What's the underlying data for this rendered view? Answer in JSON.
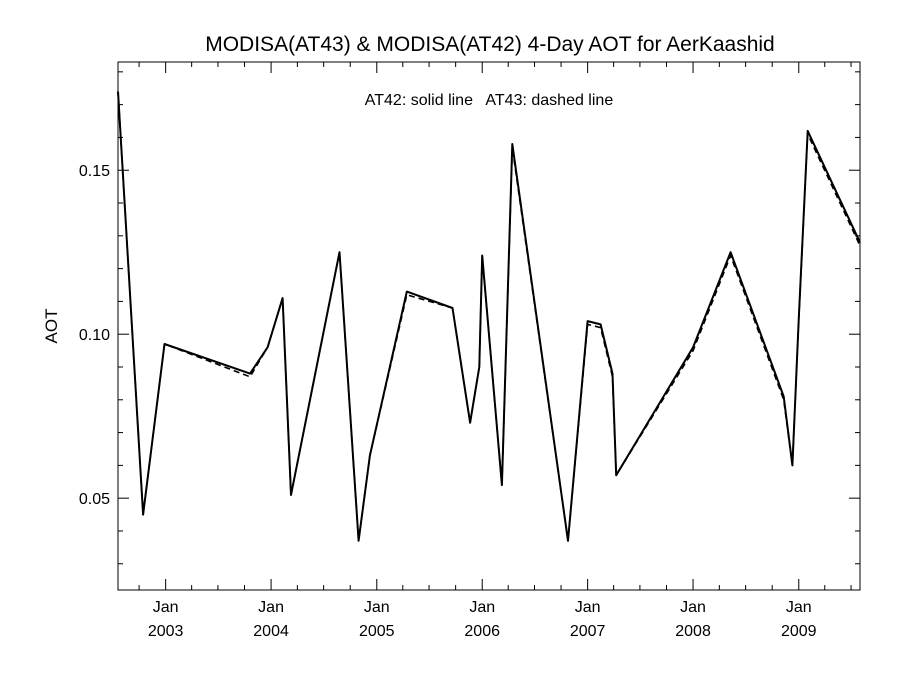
{
  "chart_data": {
    "type": "line",
    "title": "MODISA(AT43) & MODISA(AT42) 4-Day AOT for AerKaashid",
    "annotation": "AT42: solid line   AT43: dashed line",
    "xlabel": "",
    "ylabel": "AOT",
    "xlim": [
      "2002-07-20",
      "2009-08-01"
    ],
    "ylim": [
      0.022,
      0.183
    ],
    "yticks": [
      0.05,
      0.1,
      0.15
    ],
    "ytick_labels": [
      "0.05",
      "0.10",
      "0.15"
    ],
    "xticks": [
      {
        "date": "2003-01-01",
        "month": "Jan",
        "year": "2003"
      },
      {
        "date": "2004-01-01",
        "month": "Jan",
        "year": "2004"
      },
      {
        "date": "2005-01-01",
        "month": "Jan",
        "year": "2005"
      },
      {
        "date": "2006-01-01",
        "month": "Jan",
        "year": "2006"
      },
      {
        "date": "2007-01-01",
        "month": "Jan",
        "year": "2007"
      },
      {
        "date": "2008-01-01",
        "month": "Jan",
        "year": "2008"
      },
      {
        "date": "2009-01-01",
        "month": "Jan",
        "year": "2009"
      }
    ],
    "grid": false,
    "series": [
      {
        "label": "AT42",
        "style": "solid",
        "color": "#000000",
        "points": [
          [
            "2002-07-20",
            0.174
          ],
          [
            "2002-10-15",
            0.045
          ],
          [
            "2002-12-28",
            0.097
          ],
          [
            "2003-10-20",
            0.088
          ],
          [
            "2003-12-20",
            0.096
          ],
          [
            "2004-02-10",
            0.111
          ],
          [
            "2004-03-10",
            0.051
          ],
          [
            "2004-08-25",
            0.125
          ],
          [
            "2004-10-30",
            0.037
          ],
          [
            "2004-12-08",
            0.063
          ],
          [
            "2005-04-15",
            0.113
          ],
          [
            "2005-09-20",
            0.108
          ],
          [
            "2005-11-20",
            0.073
          ],
          [
            "2005-12-22",
            0.09
          ],
          [
            "2006-01-01",
            0.124
          ],
          [
            "2006-03-10",
            0.054
          ],
          [
            "2006-04-15",
            0.158
          ],
          [
            "2006-10-25",
            0.037
          ],
          [
            "2007-01-01",
            0.104
          ],
          [
            "2007-02-15",
            0.103
          ],
          [
            "2007-03-28",
            0.088
          ],
          [
            "2007-04-10",
            0.057
          ],
          [
            "2008-01-01",
            0.096
          ],
          [
            "2008-05-10",
            0.125
          ],
          [
            "2008-11-10",
            0.081
          ],
          [
            "2008-12-10",
            0.06
          ],
          [
            "2009-01-01",
            0.105
          ],
          [
            "2009-02-01",
            0.162
          ],
          [
            "2009-08-01",
            0.128
          ]
        ]
      },
      {
        "label": "AT43",
        "style": "dashed",
        "color": "#000000",
        "points": [
          [
            "2002-07-20",
            0.174
          ],
          [
            "2002-10-15",
            0.045
          ],
          [
            "2002-12-28",
            0.097
          ],
          [
            "2003-10-20",
            0.087
          ],
          [
            "2003-12-20",
            0.096
          ],
          [
            "2004-02-10",
            0.111
          ],
          [
            "2004-03-10",
            0.051
          ],
          [
            "2004-08-25",
            0.125
          ],
          [
            "2004-10-30",
            0.037
          ],
          [
            "2004-12-08",
            0.063
          ],
          [
            "2005-04-15",
            0.112
          ],
          [
            "2005-09-20",
            0.108
          ],
          [
            "2005-11-20",
            0.073
          ],
          [
            "2005-12-22",
            0.09
          ],
          [
            "2006-01-01",
            0.124
          ],
          [
            "2006-03-10",
            0.054
          ],
          [
            "2006-04-15",
            0.157
          ],
          [
            "2006-10-25",
            0.037
          ],
          [
            "2007-01-01",
            0.103
          ],
          [
            "2007-02-15",
            0.102
          ],
          [
            "2007-03-28",
            0.087
          ],
          [
            "2007-04-10",
            0.057
          ],
          [
            "2008-01-01",
            0.095
          ],
          [
            "2008-05-10",
            0.124
          ],
          [
            "2008-11-10",
            0.08
          ],
          [
            "2008-12-10",
            0.06
          ],
          [
            "2009-01-01",
            0.105
          ],
          [
            "2009-02-01",
            0.161
          ],
          [
            "2009-08-01",
            0.127
          ]
        ]
      }
    ]
  }
}
